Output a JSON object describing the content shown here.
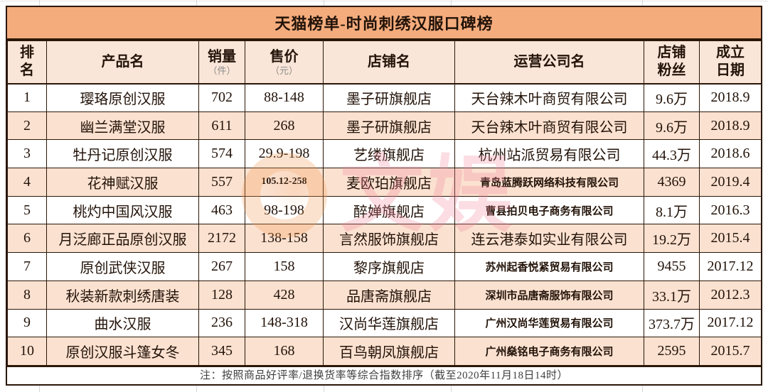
{
  "title": "天猫榜单-时尚刺绣汉服口碑榜",
  "colors": {
    "title_bg": "#F4AC7D",
    "header_bg": "#FAE6D8",
    "stripe_bg": "#FBE1D0",
    "border": "#2B1708",
    "text": "#231309",
    "unit": "#8C8C8C",
    "footer_text": "#404040",
    "wm_orange": "#F49B52",
    "wm_pink": "#F2889C"
  },
  "watermark": {
    "text": "文娱"
  },
  "table": {
    "columns": {
      "rank_line1": "排",
      "rank_line2": "名",
      "product": "产品名",
      "sales": "销量",
      "sales_unit": "（件）",
      "price": "售价",
      "price_unit": "（元）",
      "shop": "店铺名",
      "company": "运营公司名",
      "fans_line1": "店铺",
      "fans_line2": "粉丝",
      "date_line1": "成立",
      "date_line2": "日期"
    },
    "rows": [
      {
        "rank": "1",
        "product": "璎珞原创汉服",
        "sales": "702",
        "price": "88-148",
        "shop": "墨子研旗舰店",
        "company": "天台辣木叶商贸有限公司",
        "fans": "9.6万",
        "date": "2018.9",
        "striped": false,
        "price_small": false,
        "company_small": false
      },
      {
        "rank": "2",
        "product": "幽兰满堂汉服",
        "sales": "611",
        "price": "268",
        "shop": "墨子研旗舰店",
        "company": "天台辣木叶商贸有限公司",
        "fans": "9.6万",
        "date": "2018.9",
        "striped": true,
        "price_small": false,
        "company_small": false
      },
      {
        "rank": "3",
        "product": "牡丹记原创汉服",
        "sales": "574",
        "price": "29.9-198",
        "shop": "艺缕旗舰店",
        "company": "杭州站派贸易有限公司",
        "fans": "44.3万",
        "date": "2018.6",
        "striped": false,
        "price_small": false,
        "company_small": false
      },
      {
        "rank": "4",
        "product": "花神赋汉服",
        "sales": "557",
        "price": "105.12-258",
        "shop": "麦欧珀旗舰店",
        "company": "青岛蓝腾跃网络科技有限公司",
        "fans": "4369",
        "date": "2019.4",
        "striped": true,
        "price_small": true,
        "company_small": true
      },
      {
        "rank": "5",
        "product": "桃灼中国风汉服",
        "sales": "463",
        "price": "98-198",
        "shop": "醉婵旗舰店",
        "company": "曹县拍贝电子商务有限公司",
        "fans": "8.1万",
        "date": "2016.3",
        "striped": false,
        "price_small": false,
        "company_small": true
      },
      {
        "rank": "6",
        "product": "月泛廊正品原创汉服",
        "sales": "2172",
        "price": "138-158",
        "shop": "言然服饰旗舰店",
        "company": "连云港泰如实业有限公司",
        "fans": "19.2万",
        "date": "2015.4",
        "striped": true,
        "price_small": false,
        "company_small": false
      },
      {
        "rank": "7",
        "product": "原创武侠汉服",
        "sales": "267",
        "price": "158",
        "shop": "黎序旗舰店",
        "company": "苏州起香悦紧贸易有限公司",
        "fans": "9455",
        "date": "2017.12",
        "striped": false,
        "price_small": false,
        "company_small": true
      },
      {
        "rank": "8",
        "product": "秋装新款刺绣唐装",
        "sales": "128",
        "price": "428",
        "shop": "品唐斋旗舰店",
        "company": "深圳市品唐斋服饰有限公司",
        "fans": "33.1万",
        "date": "2012.3",
        "striped": true,
        "price_small": false,
        "company_small": true
      },
      {
        "rank": "9",
        "product": "曲水汉服",
        "sales": "236",
        "price": "148-318",
        "shop": "汉尚华莲旗舰店",
        "company": "广州汉尚华莲贸易有限公司",
        "fans": "373.7万",
        "date": "2017.12",
        "striped": false,
        "price_small": false,
        "company_small": true
      },
      {
        "rank": "10",
        "product": "原创汉服斗篷女冬",
        "sales": "345",
        "price": "168",
        "shop": "百鸟朝凤旗舰店",
        "company": "广州燊铭电子商务有限公司",
        "fans": "2595",
        "date": "2015.7",
        "striped": true,
        "price_small": false,
        "company_small": true
      }
    ]
  },
  "footer": {
    "note": "注：按照商品好评率/退换货率等综合指数排序（截至2020年11月18日14时）"
  }
}
